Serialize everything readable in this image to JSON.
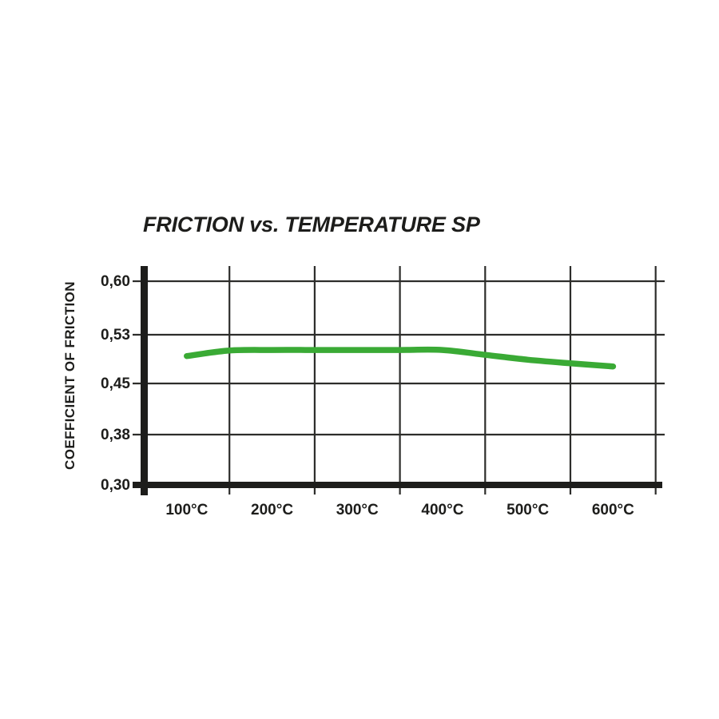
{
  "chart_data": {
    "type": "line",
    "title": "FRICTION vs. TEMPERATURE SP",
    "xlabel": "",
    "ylabel": "COEFFICIENT OF FRICTION",
    "x_tick_labels": [
      "100°C",
      "200°C",
      "300°C",
      "400°C",
      "500°C",
      "600°C"
    ],
    "x_tick_values_c": [
      100,
      200,
      300,
      400,
      500,
      600
    ],
    "y_tick_labels": [
      "0,60",
      "0,53",
      "0,45",
      "0,38",
      "0,30"
    ],
    "y_tick_values": [
      0.6,
      0.53,
      0.45,
      0.38,
      0.3
    ],
    "ylim": [
      0.3,
      0.62
    ],
    "grid": true,
    "legend_position": "none",
    "colors": {
      "line": "#3aaa35",
      "axis": "#1d1d1b",
      "grid": "#2d2d2b",
      "text": "#1d1d1b",
      "background": "#ffffff"
    },
    "series": [
      {
        "name": "SP",
        "points": [
          [
            100,
            0.495
          ],
          [
            150,
            0.504
          ],
          [
            200,
            0.505
          ],
          [
            250,
            0.505
          ],
          [
            300,
            0.505
          ],
          [
            350,
            0.505
          ],
          [
            400,
            0.505
          ],
          [
            450,
            0.497
          ],
          [
            500,
            0.489
          ],
          [
            550,
            0.483
          ],
          [
            600,
            0.478
          ]
        ]
      }
    ]
  }
}
